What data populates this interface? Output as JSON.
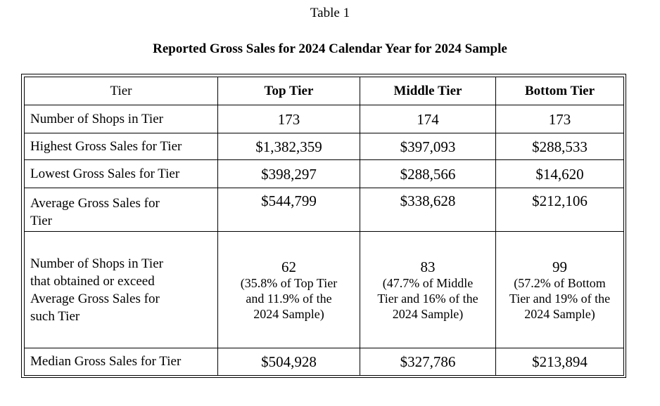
{
  "caption": "Table 1",
  "title": "Reported Gross Sales for 2024 Calendar Year for 2024 Sample",
  "header": {
    "label": "Tier",
    "top": "Top Tier",
    "middle": "Middle Tier",
    "bottom": "Bottom Tier"
  },
  "rows": [
    {
      "label": "Number of Shops in Tier",
      "top": "173",
      "middle": "174",
      "bottom": "173"
    },
    {
      "label": "Highest Gross Sales for Tier",
      "top": "$1,382,359",
      "middle": "$397,093",
      "bottom": "$288,533"
    },
    {
      "label": "Lowest Gross Sales for Tier",
      "top": "$398,297",
      "middle": "$288,566",
      "bottom": "$14,620"
    },
    {
      "label_line1": "Average Gross Sales for",
      "label_line2": "Tier",
      "top": "$544,799",
      "middle": "$338,628",
      "bottom": "$212,106"
    },
    {
      "label_line1": "Number of Shops in Tier",
      "label_line2": "that obtained or exceed",
      "label_line3": "Average Gross Sales for",
      "label_line4": "such Tier",
      "top": {
        "count": "62",
        "line1": "(35.8% of Top Tier",
        "line2": "and 11.9% of the",
        "line3": "2024 Sample)"
      },
      "middle": {
        "count": "83",
        "line1": "(47.7% of Middle",
        "line2": "Tier and 16% of the",
        "line3": "2024 Sample)"
      },
      "bottom": {
        "count": "99",
        "line1": "(57.2% of Bottom",
        "line2": "Tier and 19% of the",
        "line3": "2024 Sample)"
      }
    },
    {
      "label": "Median Gross Sales for Tier",
      "top": "$504,928",
      "middle": "$327,786",
      "bottom": "$213,894"
    }
  ]
}
